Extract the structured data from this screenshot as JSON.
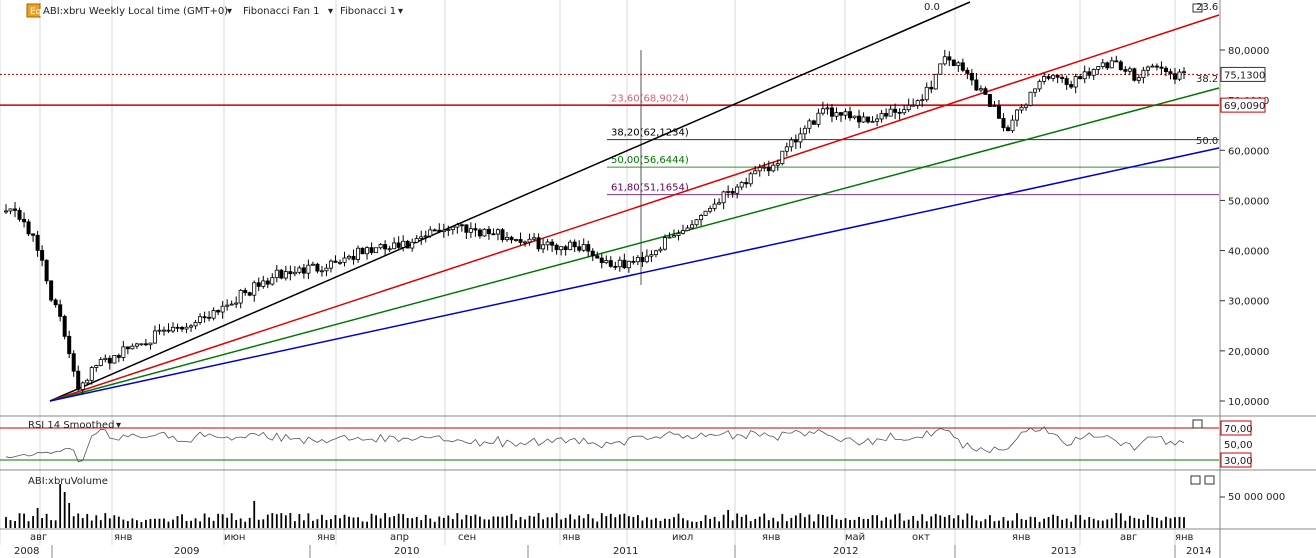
{
  "header": {
    "symbol_label": "ABI:xbru Weekly Local time (GMT+0)",
    "fib_fan_label": "Fibonacci Fan 1",
    "fib_label": "Fibonacci 1"
  },
  "rsi_panel": {
    "title": "RSI 14 Smoothed",
    "levels": [
      "70,00",
      "50,00",
      "30,00"
    ]
  },
  "volume_panel": {
    "title": "ABI:xbruVolume",
    "tick": "50 000 000"
  },
  "colors": {
    "up": "#ffffff",
    "down": "#000000",
    "fan_1": "#000000",
    "fan_2": "#e00000",
    "fan_3": "#007700",
    "fan_4": "#0000cc",
    "last_price_line": "#cc0000"
  },
  "chart_data": {
    "type": "candlestick",
    "price_axis": {
      "ticks": [
        "80,0000",
        "70,0000",
        "60,0000",
        "50,0000",
        "40,0000",
        "30,0000",
        "20,0000",
        "10,0000"
      ],
      "ylim": [
        8,
        87
      ]
    },
    "last_price": "75,1300",
    "marked_level": "69,0090",
    "fib_retracement_levels": [
      {
        "label": "23,60(68,9024)",
        "value": 68.9024,
        "color": "#cc6677"
      },
      {
        "label": "38,20(62,1234)",
        "value": 62.1234,
        "color": "#000000"
      },
      {
        "label": "50,00(56,6444)",
        "value": 56.6444,
        "color": "#007700"
      },
      {
        "label": "61,80(51,1654)",
        "value": 51.1654,
        "color": "#660066"
      }
    ],
    "fan_labels": [
      "0.0",
      "23.6",
      "38.2",
      "50.0"
    ],
    "time_axis": {
      "months": [
        "авг",
        "янв",
        "июн",
        "янв",
        "апр",
        "сен",
        "янв",
        "июл",
        "янв",
        "май",
        "окт",
        "янв",
        "авг",
        "янв"
      ],
      "years": [
        "2008",
        "2009",
        "2010",
        "2011",
        "2012",
        "2013",
        "2014"
      ]
    },
    "price_path": [
      [
        0,
        49
      ],
      [
        4,
        46
      ],
      [
        8,
        38
      ],
      [
        10,
        31
      ],
      [
        12,
        26
      ],
      [
        14,
        20
      ],
      [
        16,
        13
      ],
      [
        20,
        17
      ],
      [
        30,
        22
      ],
      [
        40,
        25
      ],
      [
        50,
        30
      ],
      [
        60,
        35
      ],
      [
        70,
        37
      ],
      [
        80,
        40
      ],
      [
        90,
        41
      ],
      [
        95,
        44
      ],
      [
        100,
        45
      ],
      [
        110,
        43
      ],
      [
        120,
        41
      ],
      [
        128,
        41
      ],
      [
        132,
        38
      ],
      [
        136,
        37
      ],
      [
        140,
        38
      ],
      [
        150,
        44
      ],
      [
        160,
        52
      ],
      [
        170,
        57
      ],
      [
        175,
        62
      ],
      [
        180,
        67
      ],
      [
        185,
        68
      ],
      [
        190,
        66
      ],
      [
        195,
        67
      ],
      [
        200,
        68
      ],
      [
        205,
        73
      ],
      [
        208,
        79
      ],
      [
        212,
        76
      ],
      [
        216,
        72
      ],
      [
        220,
        67
      ],
      [
        222,
        64
      ],
      [
        226,
        70
      ],
      [
        230,
        75
      ],
      [
        235,
        73
      ],
      [
        240,
        76
      ],
      [
        245,
        77
      ],
      [
        250,
        75
      ],
      [
        254,
        77
      ],
      [
        258,
        75
      ]
    ]
  }
}
